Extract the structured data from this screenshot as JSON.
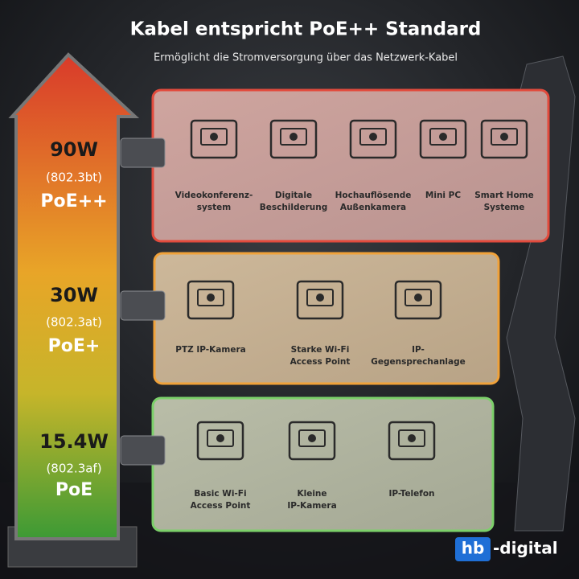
{
  "header": {
    "title": "Kabel entspricht PoE++ Standard",
    "subtitle": "Ermöglicht die Stromversorgung über das Netzwerk-Kabel"
  },
  "levels": [
    {
      "power": "90W",
      "standard": "(802.3bt)",
      "name": "PoE++",
      "devices": [
        {
          "lines": [
            "Videokonferenz-",
            "system"
          ]
        },
        {
          "lines": [
            "Digitale",
            "Beschilderung"
          ]
        },
        {
          "lines": [
            "Hochauflösende",
            "Außenkamera"
          ]
        },
        {
          "lines": [
            "Mini PC"
          ]
        },
        {
          "lines": [
            "Smart Home",
            "Systeme"
          ]
        }
      ]
    },
    {
      "power": "30W",
      "standard": "(802.3at)",
      "name": "PoE+",
      "devices": [
        {
          "lines": [
            "PTZ IP-Kamera"
          ]
        },
        {
          "lines": [
            "Starke Wi-Fi",
            "Access Point"
          ]
        },
        {
          "lines": [
            "IP-",
            "Gegensprechanlage"
          ]
        }
      ]
    },
    {
      "power": "15.4W",
      "standard": "(802.3af)",
      "name": "PoE",
      "devices": [
        {
          "lines": [
            "Basic Wi-Fi",
            "Access Point"
          ]
        },
        {
          "lines": [
            "Kleine",
            "IP-Kamera"
          ]
        },
        {
          "lines": [
            "IP-Telefon"
          ]
        }
      ]
    }
  ],
  "brand": {
    "mark": "hb",
    "rest": "-digital"
  }
}
